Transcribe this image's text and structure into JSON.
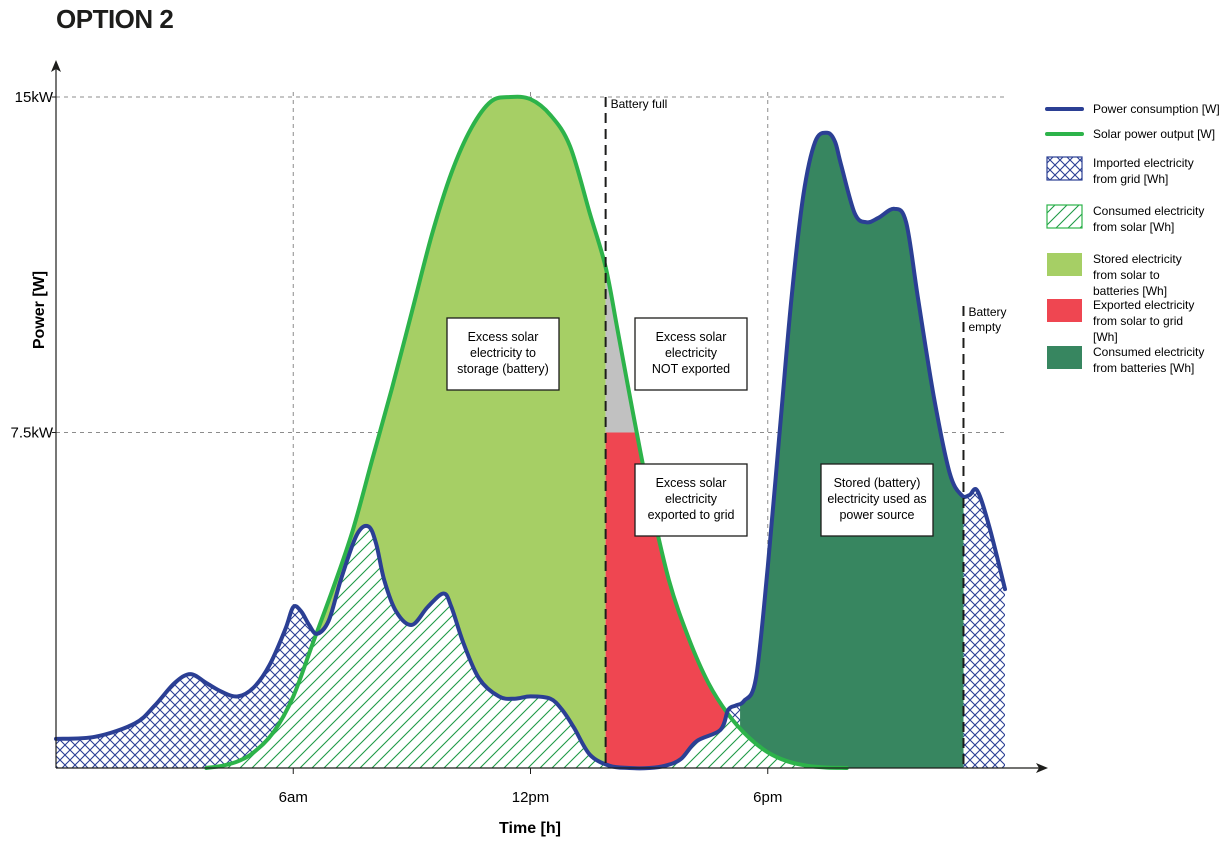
{
  "page": {
    "title": "OPTION 2"
  },
  "chart_data": {
    "type": "area",
    "xlabel": "Time [h]",
    "ylabel": "Power [W]",
    "x_range_hours": [
      0,
      24
    ],
    "y_range_kw": [
      0,
      15
    ],
    "x_ticks": [
      {
        "value": 6,
        "label": "6am"
      },
      {
        "value": 12,
        "label": "12pm"
      },
      {
        "value": 18,
        "label": "6pm"
      }
    ],
    "y_ticks": [
      {
        "value": 7.5,
        "label": "7.5kW"
      },
      {
        "value": 15,
        "label": "15kW"
      }
    ],
    "grid": true,
    "legend_position": "right",
    "series": [
      {
        "name": "Power consumption [W]",
        "color": "#2b3f94",
        "x": [
          0,
          1,
          2,
          2.5,
          3,
          3.4,
          3.8,
          4.2,
          4.6,
          5,
          5.4,
          5.8,
          6,
          6.2,
          6.4,
          6.6,
          6.9,
          7.2,
          7.6,
          7.9,
          8.1,
          8.3,
          8.6,
          9,
          9.4,
          9.8,
          10,
          10.3,
          10.7,
          11.2,
          11.6,
          12,
          12.5,
          12.8,
          13.1,
          13.5,
          14,
          14.5,
          15,
          15.4,
          15.8,
          16.2,
          16.8,
          17,
          17.2,
          17.4,
          17.7,
          18,
          18.3,
          18.6,
          18.9,
          19.2,
          19.5,
          19.7,
          19.85,
          20.2,
          20.5,
          20.8,
          21.2,
          21.5,
          21.8,
          22.2,
          22.6,
          22.9,
          23.1,
          23.3,
          23.6,
          24
        ],
        "y_kw": [
          0.65,
          0.7,
          1.0,
          1.4,
          1.9,
          2.1,
          1.9,
          1.7,
          1.6,
          1.8,
          2.3,
          3.1,
          3.6,
          3.5,
          3.2,
          3.0,
          3.3,
          4.2,
          5.2,
          5.4,
          5.0,
          4.2,
          3.5,
          3.2,
          3.6,
          3.9,
          3.6,
          2.8,
          2.0,
          1.6,
          1.55,
          1.6,
          1.55,
          1.3,
          0.9,
          0.3,
          0.05,
          0.0,
          0.0,
          0.05,
          0.2,
          0.6,
          0.85,
          1.3,
          1.4,
          1.5,
          2.0,
          4.5,
          7.5,
          10.5,
          12.8,
          14.0,
          14.2,
          14.0,
          13.5,
          12.4,
          12.2,
          12.3,
          12.5,
          12.2,
          10.5,
          8.3,
          6.6,
          6.1,
          6.1,
          6.2,
          5.4,
          4.0
        ]
      },
      {
        "name": "Solar power output [W]",
        "color": "#2db34a",
        "x": [
          3.8,
          4.2,
          4.6,
          5,
          5.5,
          6,
          6.5,
          7,
          7.5,
          8,
          8.5,
          9,
          9.5,
          10,
          10.5,
          11,
          11.5,
          12,
          12.5,
          13,
          13.5,
          13.9,
          14.2,
          14.6,
          15,
          15.5,
          16,
          16.5,
          17,
          17.5,
          18,
          18.5,
          19,
          19.5,
          20
        ],
        "y_kw": [
          0.0,
          0.05,
          0.15,
          0.35,
          0.8,
          1.6,
          2.8,
          4.0,
          5.3,
          6.9,
          8.5,
          10.2,
          11.9,
          13.3,
          14.3,
          14.9,
          15.0,
          14.95,
          14.6,
          13.9,
          12.4,
          11.2,
          9.8,
          7.9,
          6.1,
          4.2,
          2.9,
          1.9,
          1.2,
          0.7,
          0.35,
          0.15,
          0.05,
          0.01,
          0.0
        ]
      }
    ],
    "areas": [
      {
        "name": "Imported electricity from grid [Wh]",
        "pattern": "crosshatch",
        "color": "#2b3f94"
      },
      {
        "name": "Consumed electricity from solar [Wh]",
        "pattern": "diagonal",
        "color": "#2db34a"
      },
      {
        "name": "Stored electricity from solar to batteries [Wh]",
        "color": "#a6cf65"
      },
      {
        "name": "Exported electricity from solar to grid [Wh]",
        "color": "#ef4651"
      },
      {
        "name": "Consumed electricity from batteries [Wh]",
        "color": "#378660"
      }
    ],
    "not_exported_color": "#c1c1c1",
    "export_limit_kw": 7.5,
    "markers": [
      {
        "x": 13.9,
        "label": "Battery full"
      },
      {
        "x": 22.95,
        "label": "Battery\nempty"
      }
    ],
    "annotations": [
      {
        "id": "storage",
        "lines": [
          "Excess solar",
          "electricity to",
          "storage (battery)"
        ]
      },
      {
        "id": "not-exported",
        "lines": [
          "Excess solar",
          "electricity",
          "NOT exported"
        ]
      },
      {
        "id": "exported",
        "lines": [
          "Excess solar",
          "electricity",
          "exported to grid"
        ]
      },
      {
        "id": "battery-used",
        "lines": [
          "Stored (battery)",
          "electricity used as",
          "power source"
        ]
      }
    ]
  }
}
